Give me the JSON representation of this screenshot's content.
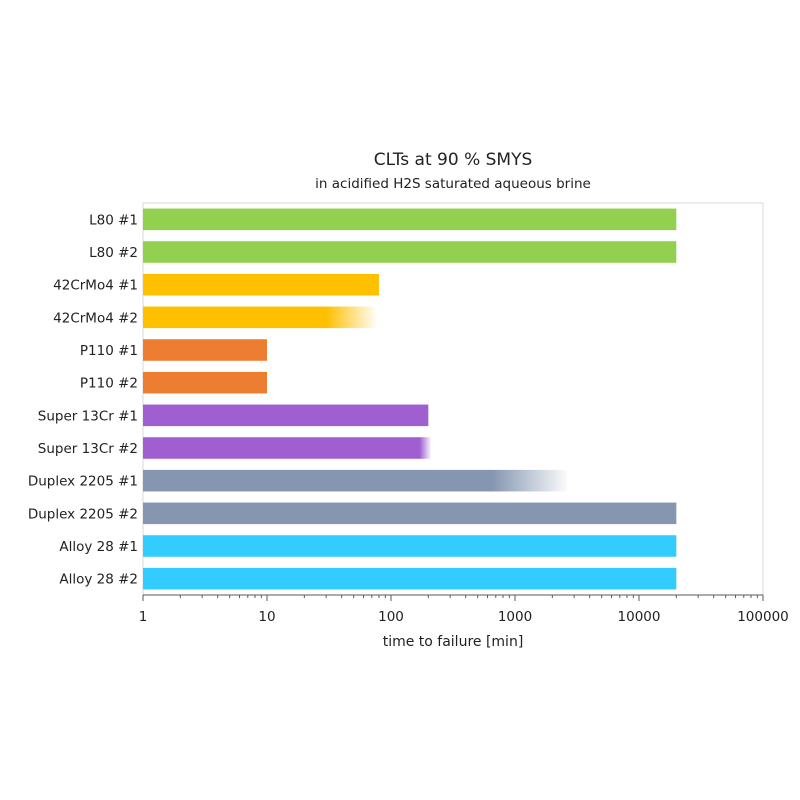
{
  "chart_data": {
    "type": "bar",
    "orientation": "horizontal",
    "title": "CLTs at 90 % SMYS",
    "subtitle": "in acidified H2S saturated aqueous brine",
    "xlabel": "time to failure [min]",
    "ylabel": "",
    "xscale": "log",
    "xlim": [
      1,
      100000
    ],
    "xticks": [
      "1",
      "10",
      "100",
      "1000",
      "10000",
      "100000"
    ],
    "grid": false,
    "categories": [
      "L80 #1",
      "L80 #2",
      "42CrMo4 #1",
      "42CrMo4 #2",
      "P110 #1",
      "P110 #2",
      "Super 13Cr #1",
      "Super 13Cr #2",
      "Duplex 2205 #1",
      "Duplex 2205 #2",
      "Alloy 28 #1",
      "Alloy 28 #2"
    ],
    "values": [
      20000,
      20000,
      80,
      75,
      10,
      10,
      200,
      210,
      2600,
      20000,
      20000,
      20000
    ],
    "fade_start": [
      null,
      null,
      null,
      30,
      null,
      null,
      null,
      170,
      650,
      null,
      null,
      null
    ],
    "colors": [
      "#92d050",
      "#92d050",
      "#ffc000",
      "#ffc000",
      "#ed7d31",
      "#ed7d31",
      "#a05fd0",
      "#a05fd0",
      "#8496b0",
      "#8496b0",
      "#33ccff",
      "#33ccff"
    ]
  }
}
